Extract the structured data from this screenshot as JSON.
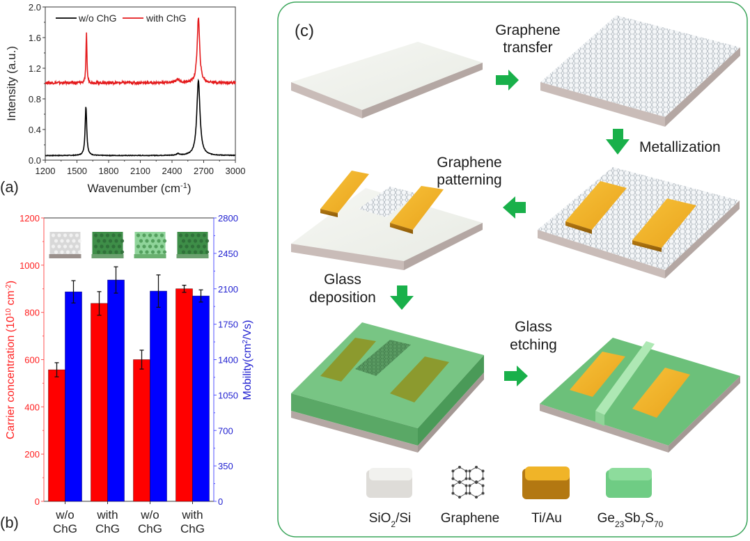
{
  "chart_data": [
    {
      "id": "a",
      "type": "line",
      "panel_label": "(a)",
      "title": "",
      "xlabel": "Wavenumber (cm⁻¹)",
      "ylabel": "Intensity (a.u.)",
      "xlim": [
        1200,
        3000
      ],
      "ylim": [
        0.0,
        2.0
      ],
      "xticks": [
        "1200",
        "1500",
        "1800",
        "2100",
        "2400",
        "2700",
        "3000"
      ],
      "yticks": [
        "0.0",
        "0.4",
        "0.8",
        "1.2",
        "1.6",
        "2.0"
      ],
      "legend_position": "top",
      "series": [
        {
          "name": "w/o ChG",
          "color": "#000000",
          "baseline": 0.06,
          "peaks": [
            {
              "x": 1585,
              "y": 0.7,
              "width": 9
            },
            {
              "x": 2455,
              "y": 0.08,
              "width": 15
            },
            {
              "x": 2650,
              "y": 1.04,
              "width": 18
            }
          ]
        },
        {
          "name": "with ChG",
          "color": "#e41a1c",
          "baseline": 1.01,
          "peaks": [
            {
              "x": 1590,
              "y": 1.68,
              "width": 5
            },
            {
              "x": 2455,
              "y": 1.06,
              "width": 18
            },
            {
              "x": 2650,
              "y": 1.86,
              "width": 14
            }
          ]
        }
      ]
    },
    {
      "id": "b",
      "type": "bar",
      "panel_label": "(b)",
      "categories": [
        "w/o\nChG",
        "with\nChG",
        "w/o\nChG",
        "with\nChG"
      ],
      "category_lines": [
        [
          "w/o",
          "ChG"
        ],
        [
          "with",
          "ChG"
        ],
        [
          "w/o",
          "ChG"
        ],
        [
          "with",
          "ChG"
        ]
      ],
      "ylabel": "Carrier concentration (10¹⁰ cm⁻²)",
      "y2label": "Mobility(cm²/Vs)",
      "ylim": [
        0,
        1200
      ],
      "y2lim": [
        0,
        2800
      ],
      "yticks": [
        "0",
        "200",
        "400",
        "600",
        "800",
        "1000",
        "1200"
      ],
      "y2ticks": [
        "0",
        "350",
        "700",
        "1050",
        "1400",
        "1750",
        "2100",
        "2450",
        "2800"
      ],
      "series": [
        {
          "name": "Carrier concentration",
          "axis": "left",
          "color": "#ff0000",
          "values": [
            557,
            838,
            600,
            900
          ],
          "errors": [
            30,
            50,
            40,
            15
          ]
        },
        {
          "name": "Mobility",
          "axis": "right",
          "color": "#0000ff",
          "values": [
            2070,
            2187,
            2077,
            2029
          ],
          "errors": [
            110,
            130,
            160,
            60
          ]
        }
      ],
      "insets": [
        "bare-graphene-on-substrate",
        "graphene-under-chg-dark",
        "graphene-under-chg-light",
        "graphene-under-chg-dark"
      ]
    }
  ],
  "diagram": {
    "panel_label": "(c)",
    "steps": {
      "graphene_transfer": [
        "Graphene",
        "transfer"
      ],
      "metallization": "Metallization",
      "graphene_patterning": [
        "Graphene",
        "patterning"
      ],
      "glass_deposition": [
        "Glass",
        "deposition"
      ],
      "glass_etching": [
        "Glass",
        "etching"
      ]
    },
    "legend": [
      {
        "name": "SiO2/Si",
        "main": "SiO",
        "sub": "2",
        "rest": "/Si",
        "color": "#e6e6e0"
      },
      {
        "name": "Graphene",
        "main": "Graphene",
        "color": "#555555"
      },
      {
        "name": "Ti/Au",
        "main": "Ti/Au",
        "color": "#e8a820"
      },
      {
        "name": "Ge23Sb7S70",
        "parts": [
          [
            "Ge",
            ""
          ],
          [
            "",
            "23"
          ],
          [
            "Sb",
            ""
          ],
          [
            "",
            "7"
          ],
          [
            "S",
            ""
          ],
          [
            "",
            "70"
          ]
        ],
        "color": "#7fd08a"
      }
    ],
    "colors": {
      "frame": "#3aa55a",
      "arrow": "#19b04a",
      "substrate_top": "#eef0ea",
      "substrate_side": "#b8aaa6",
      "gold": "#f2b52a",
      "glass": "#6cc07a"
    }
  }
}
